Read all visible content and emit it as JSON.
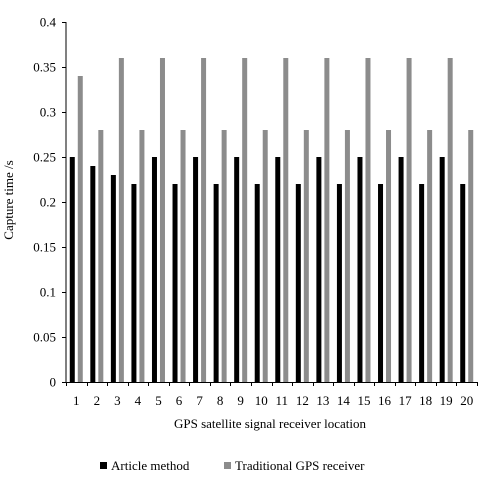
{
  "chart_data": {
    "type": "bar",
    "categories": [
      "1",
      "2",
      "3",
      "4",
      "5",
      "6",
      "7",
      "8",
      "9",
      "10",
      "11",
      "12",
      "13",
      "14",
      "15",
      "16",
      "17",
      "18",
      "19",
      "20"
    ],
    "series": [
      {
        "name": "Article method",
        "color": "#000000",
        "values": [
          0.25,
          0.24,
          0.23,
          0.22,
          0.25,
          0.22,
          0.25,
          0.22,
          0.25,
          0.22,
          0.25,
          0.22,
          0.25,
          0.22,
          0.25,
          0.22,
          0.25,
          0.22,
          0.25,
          0.22
        ]
      },
      {
        "name": "Traditional GPS receiver",
        "color": "#8c8c8c",
        "values": [
          0.34,
          0.28,
          0.36,
          0.28,
          0.36,
          0.28,
          0.36,
          0.28,
          0.36,
          0.28,
          0.36,
          0.28,
          0.36,
          0.28,
          0.36,
          0.28,
          0.36,
          0.28,
          0.36,
          0.28
        ]
      }
    ],
    "title": "",
    "xlabel": "GPS satellite signal receiver location",
    "ylabel": "Capture time /s",
    "ylim": [
      0,
      0.4
    ],
    "yticks": [
      0,
      0.05,
      0.1,
      0.15,
      0.2,
      0.25,
      0.3,
      0.35,
      0.4
    ],
    "ytick_labels": [
      "0",
      "0.05",
      "0.1",
      "0.15",
      "0.2",
      "0.25",
      "0.3",
      "0.35",
      "0.4"
    ],
    "grid": false,
    "legend_position": "bottom"
  }
}
